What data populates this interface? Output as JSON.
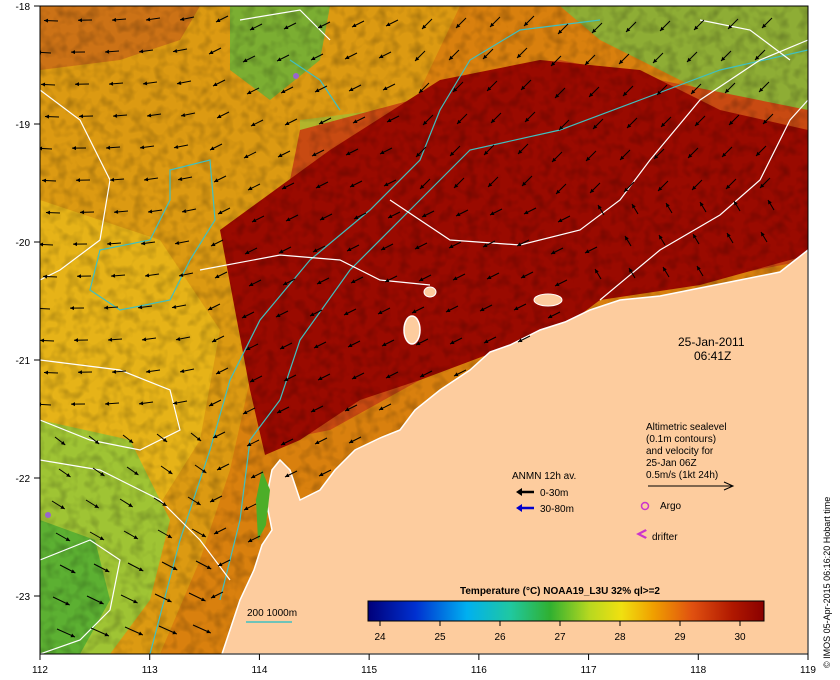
{
  "map": {
    "lon_ticks": [
      "112",
      "113",
      "114",
      "115",
      "116",
      "117",
      "118",
      "119"
    ],
    "lat_ticks": [
      "-18",
      "-19",
      "-20",
      "-21",
      "-22",
      "-23"
    ],
    "date": "25-Jan-2011",
    "time": "06:41Z",
    "sealevel_note": [
      "Altimetric sealevel",
      "(0.1m contours)",
      "and velocity for",
      "25-Jan 06Z",
      "0.5m/s (1kt 24h)"
    ],
    "anmn_title": "ANMN 12h av.",
    "anmn_items": [
      "0-30m",
      "30-80m"
    ],
    "argo_label": "Argo",
    "drifter_label": "drifter",
    "bathy_label": "200  1000m",
    "colorbar_title": "Temperature (°C) NOAA19_L3U 32% ql>=2",
    "colorbar_ticks": [
      "24",
      "25",
      "26",
      "27",
      "28",
      "29",
      "30"
    ],
    "side_stamp": "© IMOS 05-Apr-2015 06:16:20 Hobart time"
  },
  "colors": {
    "land": "#fdcc9e",
    "sst_hot": "#9a0a00",
    "sst_warm": "#c84a12",
    "sst_mid": "#e0a00a",
    "sst_green": "#4cae28",
    "contour": "#ffffff",
    "bathy": "#40c0c0",
    "argo": "#cc33cc",
    "anmn_shallow": "#000000",
    "anmn_deep": "#0000cc"
  }
}
